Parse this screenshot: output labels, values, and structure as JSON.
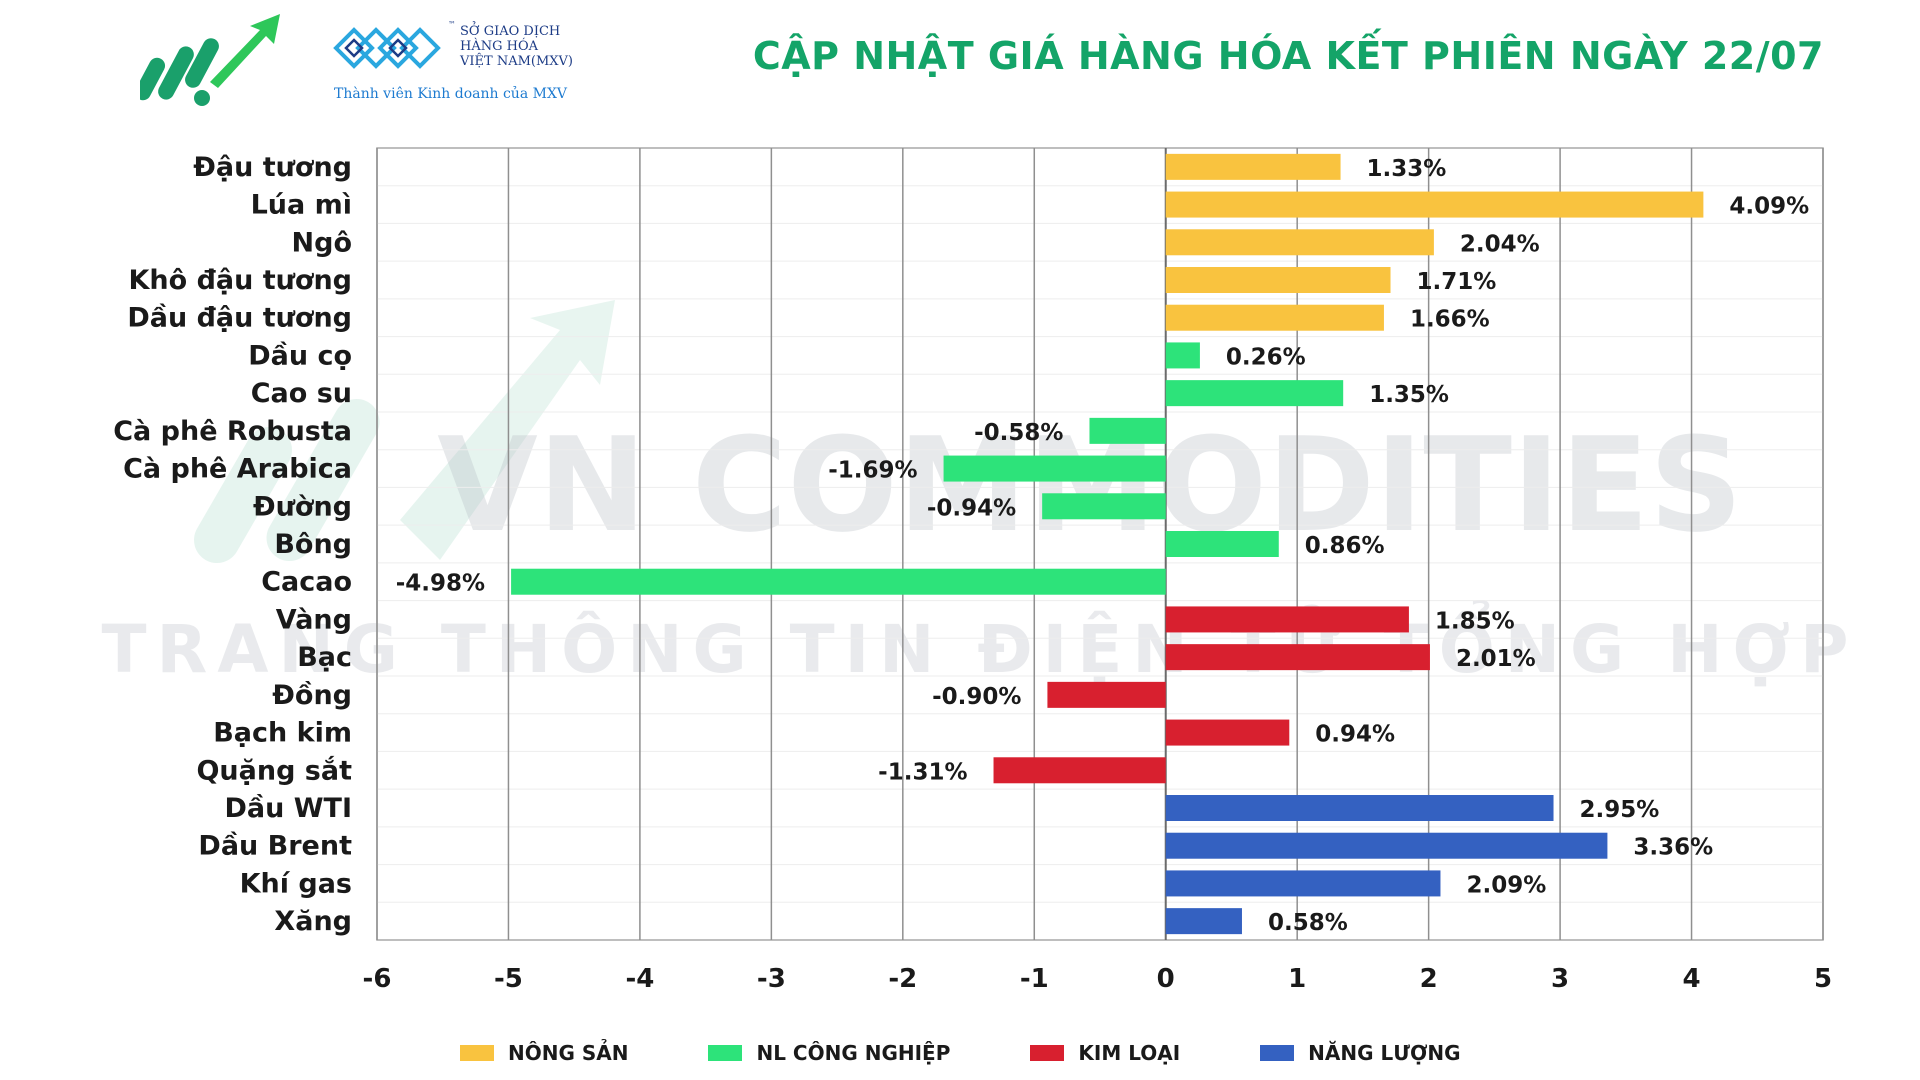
{
  "header": {
    "title": "CẬP NHẬT GIÁ HÀNG HÓA KẾT PHIÊN NGÀY 22/07",
    "mxv_lines": [
      "SỞ GIAO DỊCH",
      "HÀNG HÓA",
      "VIỆT NAM(MXV)"
    ],
    "mxv_tm": "™",
    "mxv_subtitle": "Thành viên Kinh doanh của MXV"
  },
  "watermark": {
    "line1": "VN COMMODITIES",
    "line2": "TRANG THÔNG TIN ĐIỆN TỬ TỔNG HỢP"
  },
  "colors": {
    "nong_san": "#f9c33f",
    "nl_cong_nghiep": "#2de37a",
    "kim_loai": "#d8202f",
    "nang_luong": "#3461c1",
    "title": "#14a468"
  },
  "chart_data": {
    "type": "bar",
    "orientation": "horizontal",
    "xlim": [
      -6,
      5
    ],
    "xticks": [
      -6,
      -5,
      -4,
      -3,
      -2,
      -1,
      0,
      1,
      2,
      3,
      4,
      5
    ],
    "grid": "vertical",
    "legend_position": "bottom",
    "categories": [
      "Đậu tương",
      "Lúa mì",
      "Ngô",
      "Khô đậu tương",
      "Dầu đậu tương",
      "Dầu cọ",
      "Cao su",
      "Cà phê Robusta",
      "Cà phê Arabica",
      "Đường",
      "Bông",
      "Cacao",
      "Vàng",
      "Bạc",
      "Đồng",
      "Bạch kim",
      "Quặng sắt",
      "Dầu WTI",
      "Dầu Brent",
      "Khí gas",
      "Xăng"
    ],
    "values": [
      1.33,
      4.09,
      2.04,
      1.71,
      1.66,
      0.26,
      1.35,
      -0.58,
      -1.69,
      -0.94,
      0.86,
      -4.98,
      1.85,
      2.01,
      -0.9,
      0.94,
      -1.31,
      2.95,
      3.36,
      2.09,
      0.58
    ],
    "value_labels": [
      "1.33%",
      "4.09%",
      "2.04%",
      "1.71%",
      "1.66%",
      "0.26%",
      "1.35%",
      "-0.58%",
      "-1.69%",
      "-0.94%",
      "0.86%",
      "-4.98%",
      "1.85%",
      "2.01%",
      "-0.90%",
      "0.94%",
      "-1.31%",
      "2.95%",
      "3.36%",
      "2.09%",
      "0.58%"
    ],
    "groups": [
      "nong_san",
      "nong_san",
      "nong_san",
      "nong_san",
      "nong_san",
      "nl_cong_nghiep",
      "nl_cong_nghiep",
      "nl_cong_nghiep",
      "nl_cong_nghiep",
      "nl_cong_nghiep",
      "nl_cong_nghiep",
      "nl_cong_nghiep",
      "kim_loai",
      "kim_loai",
      "kim_loai",
      "kim_loai",
      "kim_loai",
      "nang_luong",
      "nang_luong",
      "nang_luong",
      "nang_luong"
    ],
    "legend": [
      {
        "key": "nong_san",
        "label": "NÔNG SẢN"
      },
      {
        "key": "nl_cong_nghiep",
        "label": "NL CÔNG NGHIỆP"
      },
      {
        "key": "kim_loai",
        "label": "KIM LOẠI"
      },
      {
        "key": "nang_luong",
        "label": "NĂNG LƯỢNG"
      }
    ]
  }
}
